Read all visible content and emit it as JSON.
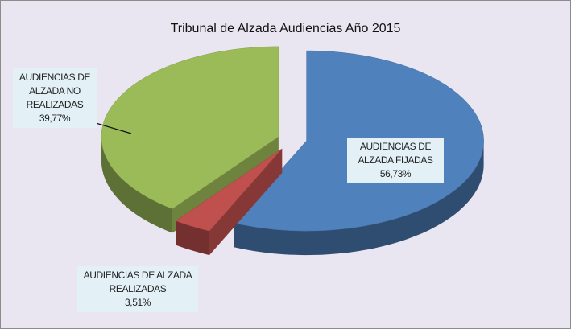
{
  "chart_data": {
    "type": "pie3d",
    "title": "Tribunal de Alzada  Audiencias Año 2015",
    "categories": [
      "AUDIENCIAS DE ALZADA FIJADAS",
      "AUDIENCIAS DE ALZADA REALIZADAS",
      "AUDIENCIAS DE ALZADA NO REALIZADAS"
    ],
    "values": [
      56.73,
      3.51,
      39.77
    ],
    "value_labels": [
      "56,73%",
      "3,51%",
      "39,77%"
    ],
    "colors": [
      "#4f81bd",
      "#c0504d",
      "#9bbb59"
    ]
  }
}
